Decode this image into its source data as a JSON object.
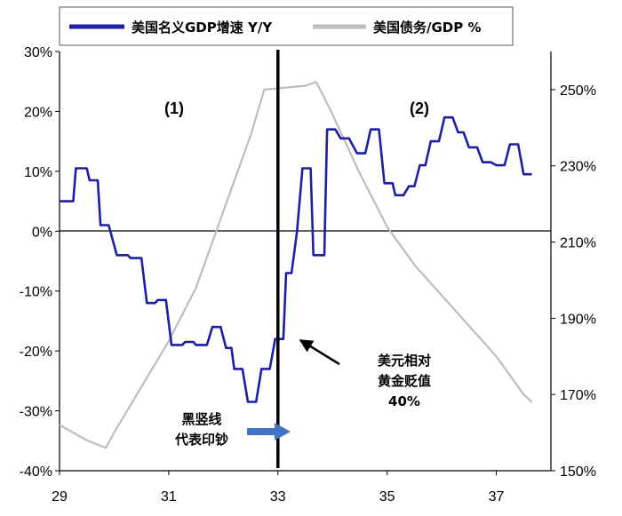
{
  "chart_data": {
    "type": "line",
    "xlim": [
      29,
      38
    ],
    "x_ticks": [
      "29",
      "31",
      "33",
      "35",
      "37"
    ],
    "left_axis": {
      "ylim": [
        -40,
        30
      ],
      "ticks": [
        "30%",
        "20%",
        "10%",
        "0%",
        "-10%",
        "-20%",
        "-30%",
        "-40%"
      ]
    },
    "right_axis": {
      "ylim": [
        150,
        260
      ],
      "ticks": [
        "250%",
        "230%",
        "210%",
        "190%",
        "170%",
        "150%"
      ]
    },
    "legend_placement": "top",
    "series": [
      {
        "name": "美国名义GDP增速 Y/Y",
        "axis": "left",
        "color": "#1c1fa5",
        "points": [
          [
            29.0,
            5
          ],
          [
            29.25,
            5
          ],
          [
            29.3,
            10.5
          ],
          [
            29.5,
            10.5
          ],
          [
            29.55,
            8.5
          ],
          [
            29.7,
            8.5
          ],
          [
            29.75,
            1
          ],
          [
            29.9,
            1
          ],
          [
            30.05,
            -4
          ],
          [
            30.25,
            -4
          ],
          [
            30.3,
            -4.5
          ],
          [
            30.5,
            -4.5
          ],
          [
            30.6,
            -12
          ],
          [
            30.75,
            -12
          ],
          [
            30.8,
            -11.5
          ],
          [
            30.95,
            -11.5
          ],
          [
            31.05,
            -19
          ],
          [
            31.25,
            -19
          ],
          [
            31.3,
            -18.5
          ],
          [
            31.45,
            -18.5
          ],
          [
            31.5,
            -19
          ],
          [
            31.7,
            -19
          ],
          [
            31.8,
            -16
          ],
          [
            31.95,
            -16
          ],
          [
            32.05,
            -19.5
          ],
          [
            32.15,
            -19.5
          ],
          [
            32.2,
            -23
          ],
          [
            32.35,
            -23
          ],
          [
            32.45,
            -28.5
          ],
          [
            32.6,
            -28.5
          ],
          [
            32.7,
            -23
          ],
          [
            32.85,
            -23
          ],
          [
            32.95,
            -18
          ],
          [
            33.1,
            -18
          ],
          [
            33.15,
            -7
          ],
          [
            33.25,
            -7
          ],
          [
            33.35,
            0
          ],
          [
            33.45,
            10.5
          ],
          [
            33.6,
            10.5
          ],
          [
            33.65,
            -4
          ],
          [
            33.85,
            -4
          ],
          [
            33.9,
            17
          ],
          [
            34.05,
            17
          ],
          [
            34.15,
            15.5
          ],
          [
            34.3,
            15.5
          ],
          [
            34.45,
            13
          ],
          [
            34.6,
            13
          ],
          [
            34.7,
            17
          ],
          [
            34.85,
            17
          ],
          [
            34.95,
            8
          ],
          [
            35.1,
            8
          ],
          [
            35.15,
            6
          ],
          [
            35.3,
            6
          ],
          [
            35.4,
            7.5
          ],
          [
            35.5,
            7.5
          ],
          [
            35.6,
            11
          ],
          [
            35.7,
            11
          ],
          [
            35.8,
            15
          ],
          [
            35.95,
            15
          ],
          [
            36.05,
            19
          ],
          [
            36.2,
            19
          ],
          [
            36.3,
            16.5
          ],
          [
            36.4,
            16.5
          ],
          [
            36.5,
            14
          ],
          [
            36.65,
            14
          ],
          [
            36.75,
            11.5
          ],
          [
            36.9,
            11.5
          ],
          [
            37.0,
            11
          ],
          [
            37.15,
            11
          ],
          [
            37.25,
            14.5
          ],
          [
            37.4,
            14.5
          ],
          [
            37.5,
            9.5
          ],
          [
            37.65,
            9.5
          ]
        ]
      },
      {
        "name": "美国债务/GDP %",
        "axis": "right",
        "color": "#bdbdbd",
        "points": [
          [
            29.0,
            162
          ],
          [
            29.5,
            158
          ],
          [
            29.85,
            156
          ],
          [
            30.0,
            160
          ],
          [
            30.5,
            172
          ],
          [
            31.0,
            184
          ],
          [
            31.5,
            198
          ],
          [
            32.0,
            218
          ],
          [
            32.5,
            238
          ],
          [
            32.75,
            250
          ],
          [
            33.5,
            251
          ],
          [
            33.7,
            252
          ],
          [
            33.95,
            245
          ],
          [
            34.5,
            228
          ],
          [
            35.0,
            214
          ],
          [
            35.5,
            204
          ],
          [
            36.0,
            196
          ],
          [
            36.5,
            188
          ],
          [
            37.0,
            180
          ],
          [
            37.5,
            170
          ],
          [
            37.65,
            168
          ]
        ]
      }
    ],
    "annotations": {
      "region_1": "(1)",
      "region_2": "(2)",
      "dollar_note": [
        "美元相对",
        "黄金贬值",
        "40%"
      ],
      "line_note": [
        "黑竖线",
        "代表印钞"
      ],
      "vertical_line_x": 33.0,
      "arrow_target_x": 33.0
    }
  }
}
